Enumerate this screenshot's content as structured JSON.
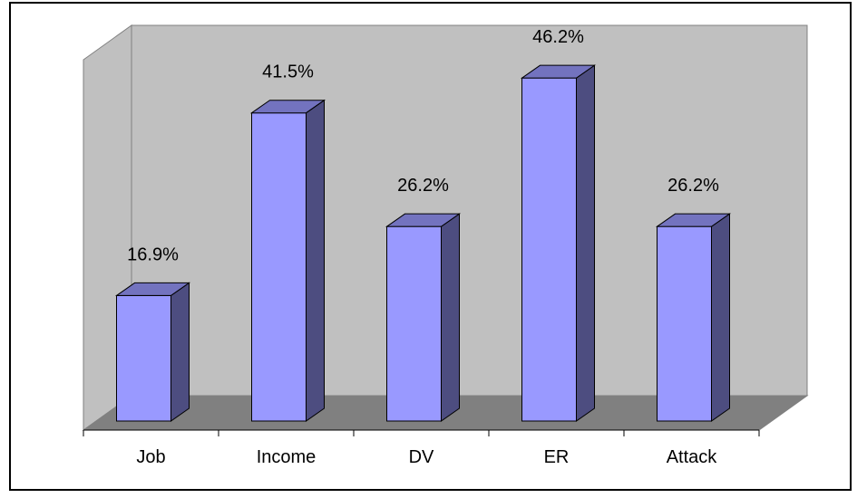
{
  "chart_data": {
    "type": "bar",
    "categories": [
      "Job",
      "Income",
      "DV",
      "ER",
      "Attack"
    ],
    "values": [
      16.9,
      41.5,
      26.2,
      46.2,
      26.2
    ],
    "data_labels": [
      "16.9%",
      "41.5%",
      "26.2%",
      "46.2%",
      "26.2%"
    ],
    "title": "",
    "xlabel": "",
    "ylabel": "",
    "ylim": [
      0,
      50
    ],
    "style": "3d-column",
    "grid": false,
    "legend": "none",
    "colors": {
      "bar_front": "#9999ff",
      "bar_side": "#4d4d80",
      "bar_top": "#7373bf",
      "wall": "#c0c0c0",
      "floor": "#808080"
    }
  }
}
